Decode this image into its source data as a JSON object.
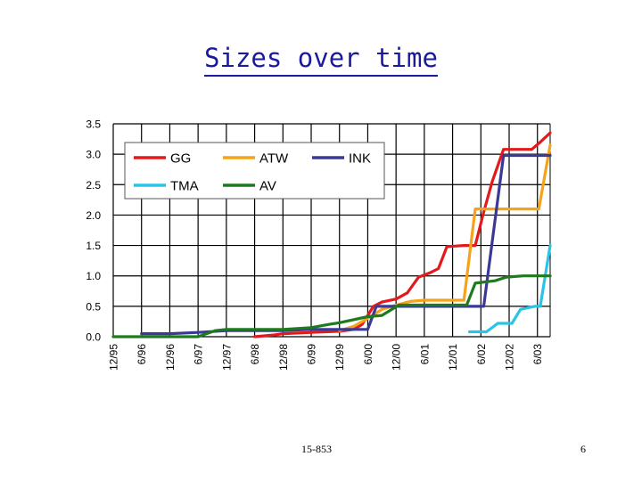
{
  "slide": {
    "title": "Sizes over time",
    "footer_course": "15-853",
    "page_number": "6"
  },
  "chart_data": {
    "type": "line",
    "title": "Sizes over time",
    "xlabel": "",
    "ylabel": "",
    "ylim": [
      0,
      3.5
    ],
    "yticks": [
      "0.0",
      "0.5",
      "1.0",
      "1.5",
      "2.0",
      "2.5",
      "3.0",
      "3.5"
    ],
    "xticks": [
      "12/95",
      "6/96",
      "12/96",
      "6/97",
      "12/97",
      "6/98",
      "12/98",
      "6/99",
      "12/99",
      "6/00",
      "12/00",
      "6/01",
      "12/01",
      "6/02",
      "12/02",
      "6/03"
    ],
    "xlim": [
      0,
      15.45
    ],
    "grid": true,
    "legend_position": "top-left",
    "series": [
      {
        "name": "GG",
        "color": "#e31a1c",
        "points": [
          [
            5.0,
            0.0
          ],
          [
            5.7,
            0.03
          ],
          [
            6.0,
            0.05
          ],
          [
            7.0,
            0.07
          ],
          [
            7.5,
            0.08
          ],
          [
            8.0,
            0.09
          ],
          [
            8.5,
            0.12
          ],
          [
            8.8,
            0.2
          ],
          [
            9.0,
            0.35
          ],
          [
            9.2,
            0.5
          ],
          [
            9.5,
            0.57
          ],
          [
            10.0,
            0.62
          ],
          [
            10.4,
            0.72
          ],
          [
            10.8,
            0.98
          ],
          [
            11.2,
            1.05
          ],
          [
            11.5,
            1.12
          ],
          [
            11.8,
            1.48
          ],
          [
            12.4,
            1.5
          ],
          [
            12.8,
            1.5
          ],
          [
            13.1,
            2.05
          ],
          [
            13.4,
            2.55
          ],
          [
            13.8,
            3.08
          ],
          [
            14.5,
            3.08
          ],
          [
            14.8,
            3.08
          ],
          [
            15.1,
            3.2
          ],
          [
            15.45,
            3.35
          ]
        ]
      },
      {
        "name": "ATW",
        "color": "#f5a31a",
        "points": [
          [
            8.0,
            0.1
          ],
          [
            8.5,
            0.17
          ],
          [
            9.0,
            0.3
          ],
          [
            9.5,
            0.45
          ],
          [
            10.0,
            0.52
          ],
          [
            10.5,
            0.58
          ],
          [
            11.0,
            0.6
          ],
          [
            11.9,
            0.6
          ],
          [
            12.4,
            0.6
          ],
          [
            12.8,
            2.1
          ],
          [
            13.5,
            2.1
          ],
          [
            14.5,
            2.1
          ],
          [
            15.05,
            2.1
          ],
          [
            15.45,
            3.15
          ]
        ]
      },
      {
        "name": "INK",
        "color": "#3a3a96",
        "points": [
          [
            1.0,
            0.05
          ],
          [
            2.0,
            0.05
          ],
          [
            3.0,
            0.07
          ],
          [
            4.0,
            0.1
          ],
          [
            5.0,
            0.1
          ],
          [
            6.0,
            0.1
          ],
          [
            7.0,
            0.12
          ],
          [
            8.0,
            0.12
          ],
          [
            9.0,
            0.12
          ],
          [
            9.3,
            0.5
          ],
          [
            10.0,
            0.5
          ],
          [
            11.0,
            0.5
          ],
          [
            12.0,
            0.5
          ],
          [
            13.1,
            0.5
          ],
          [
            13.8,
            2.98
          ],
          [
            14.5,
            2.98
          ],
          [
            15.45,
            2.98
          ]
        ]
      },
      {
        "name": "TMA",
        "color": "#29c4e8",
        "points": [
          [
            12.6,
            0.08
          ],
          [
            13.2,
            0.08
          ],
          [
            13.6,
            0.22
          ],
          [
            14.1,
            0.22
          ],
          [
            14.4,
            0.45
          ],
          [
            14.9,
            0.5
          ],
          [
            15.1,
            0.5
          ],
          [
            15.45,
            1.5
          ]
        ]
      },
      {
        "name": "AV",
        "color": "#1d7a1d",
        "points": [
          [
            0.0,
            0.0
          ],
          [
            1.0,
            0.0
          ],
          [
            2.0,
            0.0
          ],
          [
            3.0,
            0.0
          ],
          [
            3.6,
            0.1
          ],
          [
            4.0,
            0.12
          ],
          [
            5.0,
            0.12
          ],
          [
            6.0,
            0.12
          ],
          [
            7.0,
            0.15
          ],
          [
            7.6,
            0.2
          ],
          [
            8.0,
            0.23
          ],
          [
            9.0,
            0.33
          ],
          [
            9.5,
            0.35
          ],
          [
            10.1,
            0.52
          ],
          [
            11.0,
            0.52
          ],
          [
            12.0,
            0.52
          ],
          [
            12.5,
            0.52
          ],
          [
            12.8,
            0.88
          ],
          [
            13.5,
            0.92
          ],
          [
            13.9,
            0.98
          ],
          [
            14.5,
            1.0
          ],
          [
            15.45,
            1.0
          ]
        ]
      }
    ]
  }
}
